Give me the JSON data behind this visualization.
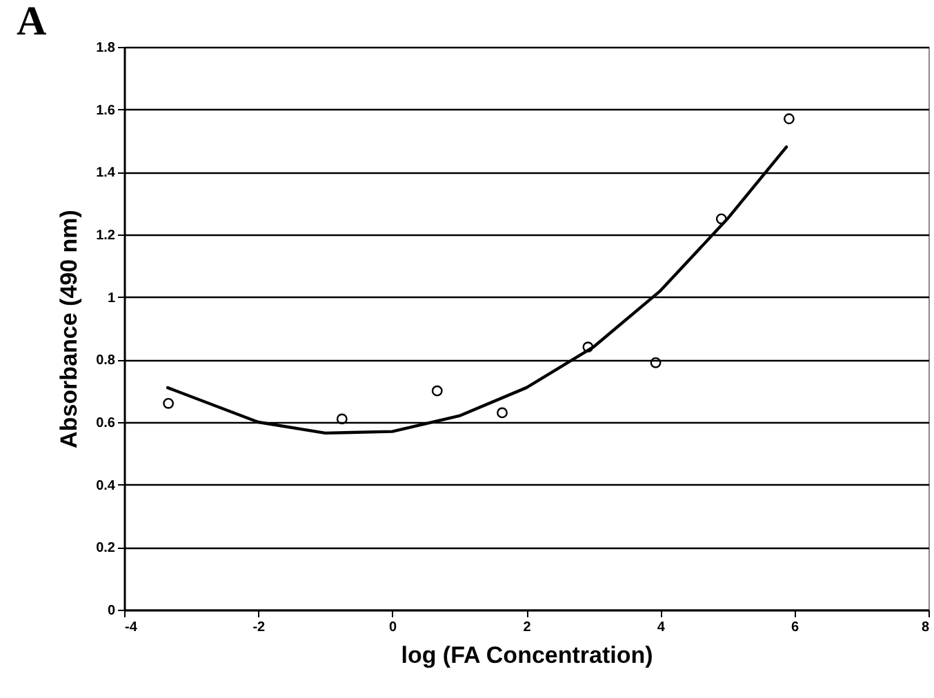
{
  "chart_data": {
    "type": "scatter",
    "title": "A",
    "xlabel": "log (FA Concentration)",
    "ylabel": "Absorbance (490 nm)",
    "series": [
      {
        "color": "#000000",
        "marker": "circle",
        "x": [
          -3.34,
          -0.75,
          0.67,
          1.64,
          2.92,
          3.93,
          4.91,
          5.92
        ],
        "values": [
          0.66,
          0.61,
          0.7,
          0.63,
          0.84,
          0.79,
          1.25,
          1.57
        ]
      },
      {
        "type": "line",
        "color": "#000000",
        "marker": "none",
        "line_style": "solid",
        "x": [
          -3.35,
          -2,
          -1,
          0,
          1,
          2,
          3,
          4,
          5,
          5.88
        ],
        "values": [
          0.71,
          0.6,
          0.565,
          0.57,
          0.62,
          0.71,
          0.84,
          1.02,
          1.25,
          1.48
        ]
      }
    ],
    "xlim": [
      -4,
      8
    ],
    "xticks": [
      -4,
      -2,
      0,
      2,
      4,
      6,
      8
    ],
    "ylim": [
      0,
      1.8
    ],
    "yticks": [
      0,
      0.2,
      0.4,
      0.6,
      0.8,
      1,
      1.2,
      1.4,
      1.6,
      1.8
    ],
    "grid": "y"
  }
}
